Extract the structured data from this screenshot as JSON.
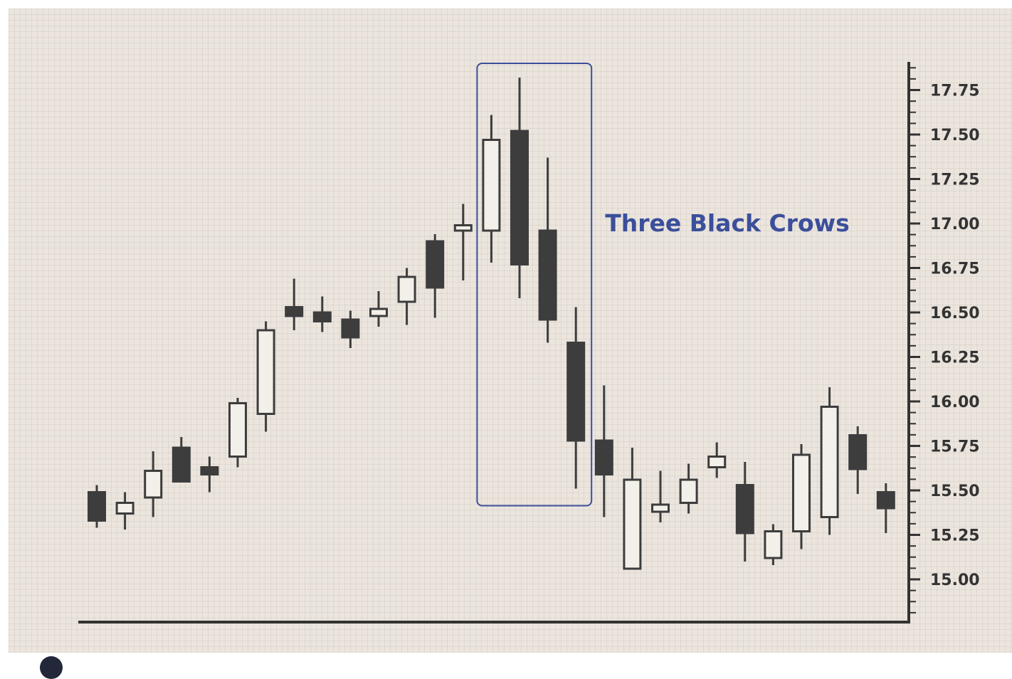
{
  "chart_data": {
    "type": "candlestick",
    "title": "",
    "xlabel": "",
    "ylabel": "",
    "ylim": [
      14.8,
      17.9
    ],
    "y_axis_side": "right",
    "grid": true,
    "y_ticks": [
      "15.00",
      "15.25",
      "15.50",
      "15.75",
      "16.00",
      "16.25",
      "16.50",
      "16.75",
      "17.00",
      "17.25",
      "17.50",
      "17.75"
    ],
    "candles": [
      {
        "open": 15.49,
        "high": 15.53,
        "low": 15.29,
        "close": 15.33
      },
      {
        "open": 15.37,
        "high": 15.49,
        "low": 15.28,
        "close": 15.43
      },
      {
        "open": 15.46,
        "high": 15.72,
        "low": 15.35,
        "close": 15.61
      },
      {
        "open": 15.74,
        "high": 15.8,
        "low": 15.55,
        "close": 15.55
      },
      {
        "open": 15.63,
        "high": 15.69,
        "low": 15.49,
        "close": 15.59
      },
      {
        "open": 15.69,
        "high": 16.02,
        "low": 15.63,
        "close": 15.99
      },
      {
        "open": 15.93,
        "high": 16.45,
        "low": 15.83,
        "close": 16.4
      },
      {
        "open": 16.53,
        "high": 16.69,
        "low": 16.4,
        "close": 16.48
      },
      {
        "open": 16.5,
        "high": 16.59,
        "low": 16.39,
        "close": 16.45
      },
      {
        "open": 16.46,
        "high": 16.51,
        "low": 16.3,
        "close": 16.36
      },
      {
        "open": 16.48,
        "high": 16.62,
        "low": 16.42,
        "close": 16.52
      },
      {
        "open": 16.56,
        "high": 16.75,
        "low": 16.43,
        "close": 16.7
      },
      {
        "open": 16.9,
        "high": 16.94,
        "low": 16.47,
        "close": 16.64
      },
      {
        "open": 16.96,
        "high": 17.11,
        "low": 16.68,
        "close": 16.99
      },
      {
        "open": 16.96,
        "high": 17.61,
        "low": 16.78,
        "close": 17.47
      },
      {
        "open": 17.52,
        "high": 17.82,
        "low": 16.58,
        "close": 16.77
      },
      {
        "open": 16.96,
        "high": 17.37,
        "low": 16.33,
        "close": 16.46
      },
      {
        "open": 16.33,
        "high": 16.53,
        "low": 15.51,
        "close": 15.78
      },
      {
        "open": 15.78,
        "high": 16.09,
        "low": 15.35,
        "close": 15.59
      },
      {
        "open": 15.06,
        "high": 15.74,
        "low": 15.06,
        "close": 15.56
      },
      {
        "open": 15.38,
        "high": 15.61,
        "low": 15.32,
        "close": 15.42
      },
      {
        "open": 15.43,
        "high": 15.65,
        "low": 15.37,
        "close": 15.56
      },
      {
        "open": 15.63,
        "high": 15.77,
        "low": 15.57,
        "close": 15.69
      },
      {
        "open": 15.53,
        "high": 15.66,
        "low": 15.1,
        "close": 15.26
      },
      {
        "open": 15.12,
        "high": 15.31,
        "low": 15.08,
        "close": 15.27
      },
      {
        "open": 15.27,
        "high": 15.76,
        "low": 15.17,
        "close": 15.7
      },
      {
        "open": 15.35,
        "high": 16.08,
        "low": 15.25,
        "close": 15.97
      },
      {
        "open": 15.81,
        "high": 15.86,
        "low": 15.48,
        "close": 15.62
      },
      {
        "open": 15.49,
        "high": 15.54,
        "low": 15.26,
        "close": 15.4
      }
    ],
    "highlight": {
      "from_index": 14,
      "to_index": 17,
      "label": "Three Black Crows"
    },
    "colors": {
      "bearish": "#3d3d3d",
      "bullish": "#f3efe9",
      "outline": "#3d3d3d",
      "highlight": "#3b4f9b",
      "axis": "#333333"
    }
  }
}
